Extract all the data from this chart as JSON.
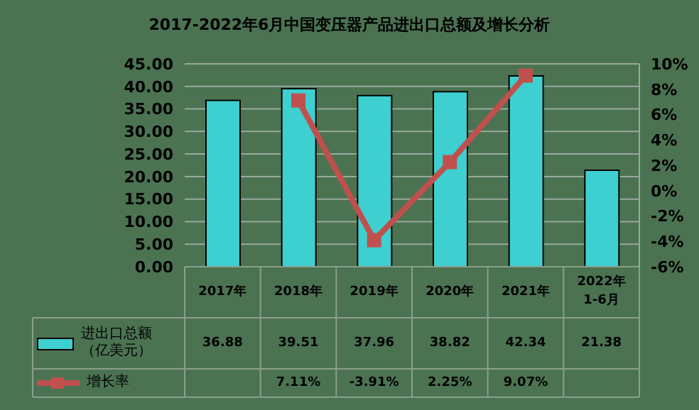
{
  "chart_data": {
    "type": "bar",
    "title": "2017-2022年6月中国变压器产品进出口总额及增长分析",
    "categories": [
      "2017年",
      "2018年",
      "2019年",
      "2020年",
      "2021年",
      "2022年\n1-6月"
    ],
    "series": [
      {
        "name": "进出口总额（亿美元）",
        "color": "#3ecfd0",
        "values": [
          36.88,
          39.51,
          37.96,
          38.82,
          42.34,
          21.38
        ],
        "value_labels": [
          "36.88",
          "39.51",
          "37.96",
          "38.82",
          "42.34",
          "21.38"
        ]
      },
      {
        "name": "增长率",
        "type": "line",
        "axis": "y2",
        "color": "#c0504d",
        "values": [
          null,
          7.11,
          -3.91,
          2.25,
          9.07,
          null
        ],
        "value_labels": [
          null,
          "7.11%",
          "-3.91%",
          "2.25%",
          "9.07%",
          null
        ]
      }
    ],
    "ylim": [
      0,
      45
    ],
    "yticks": [
      {
        "value": 0,
        "label": "0.00"
      },
      {
        "value": 5,
        "label": "5.00"
      },
      {
        "value": 10,
        "label": "10.00"
      },
      {
        "value": 15,
        "label": "15.00"
      },
      {
        "value": 20,
        "label": "20.00"
      },
      {
        "value": 25,
        "label": "25.00"
      },
      {
        "value": 30,
        "label": "30.00"
      },
      {
        "value": 35,
        "label": "35.00"
      },
      {
        "value": 40,
        "label": "40.00"
      },
      {
        "value": 45,
        "label": "45.00"
      }
    ],
    "y2lim": [
      -6,
      10
    ],
    "y2ticks": [
      {
        "value": -6,
        "label": "-6%"
      },
      {
        "value": -4,
        "label": "-4%"
      },
      {
        "value": -2,
        "label": "-2%"
      },
      {
        "value": 0,
        "label": "0%"
      },
      {
        "value": 2,
        "label": "2%"
      },
      {
        "value": 4,
        "label": "4%"
      },
      {
        "value": 6,
        "label": "6%"
      },
      {
        "value": 8,
        "label": "8%"
      },
      {
        "value": 10,
        "label": "10%"
      }
    ],
    "grid": "y",
    "legend": "bottom",
    "marker": "square"
  }
}
